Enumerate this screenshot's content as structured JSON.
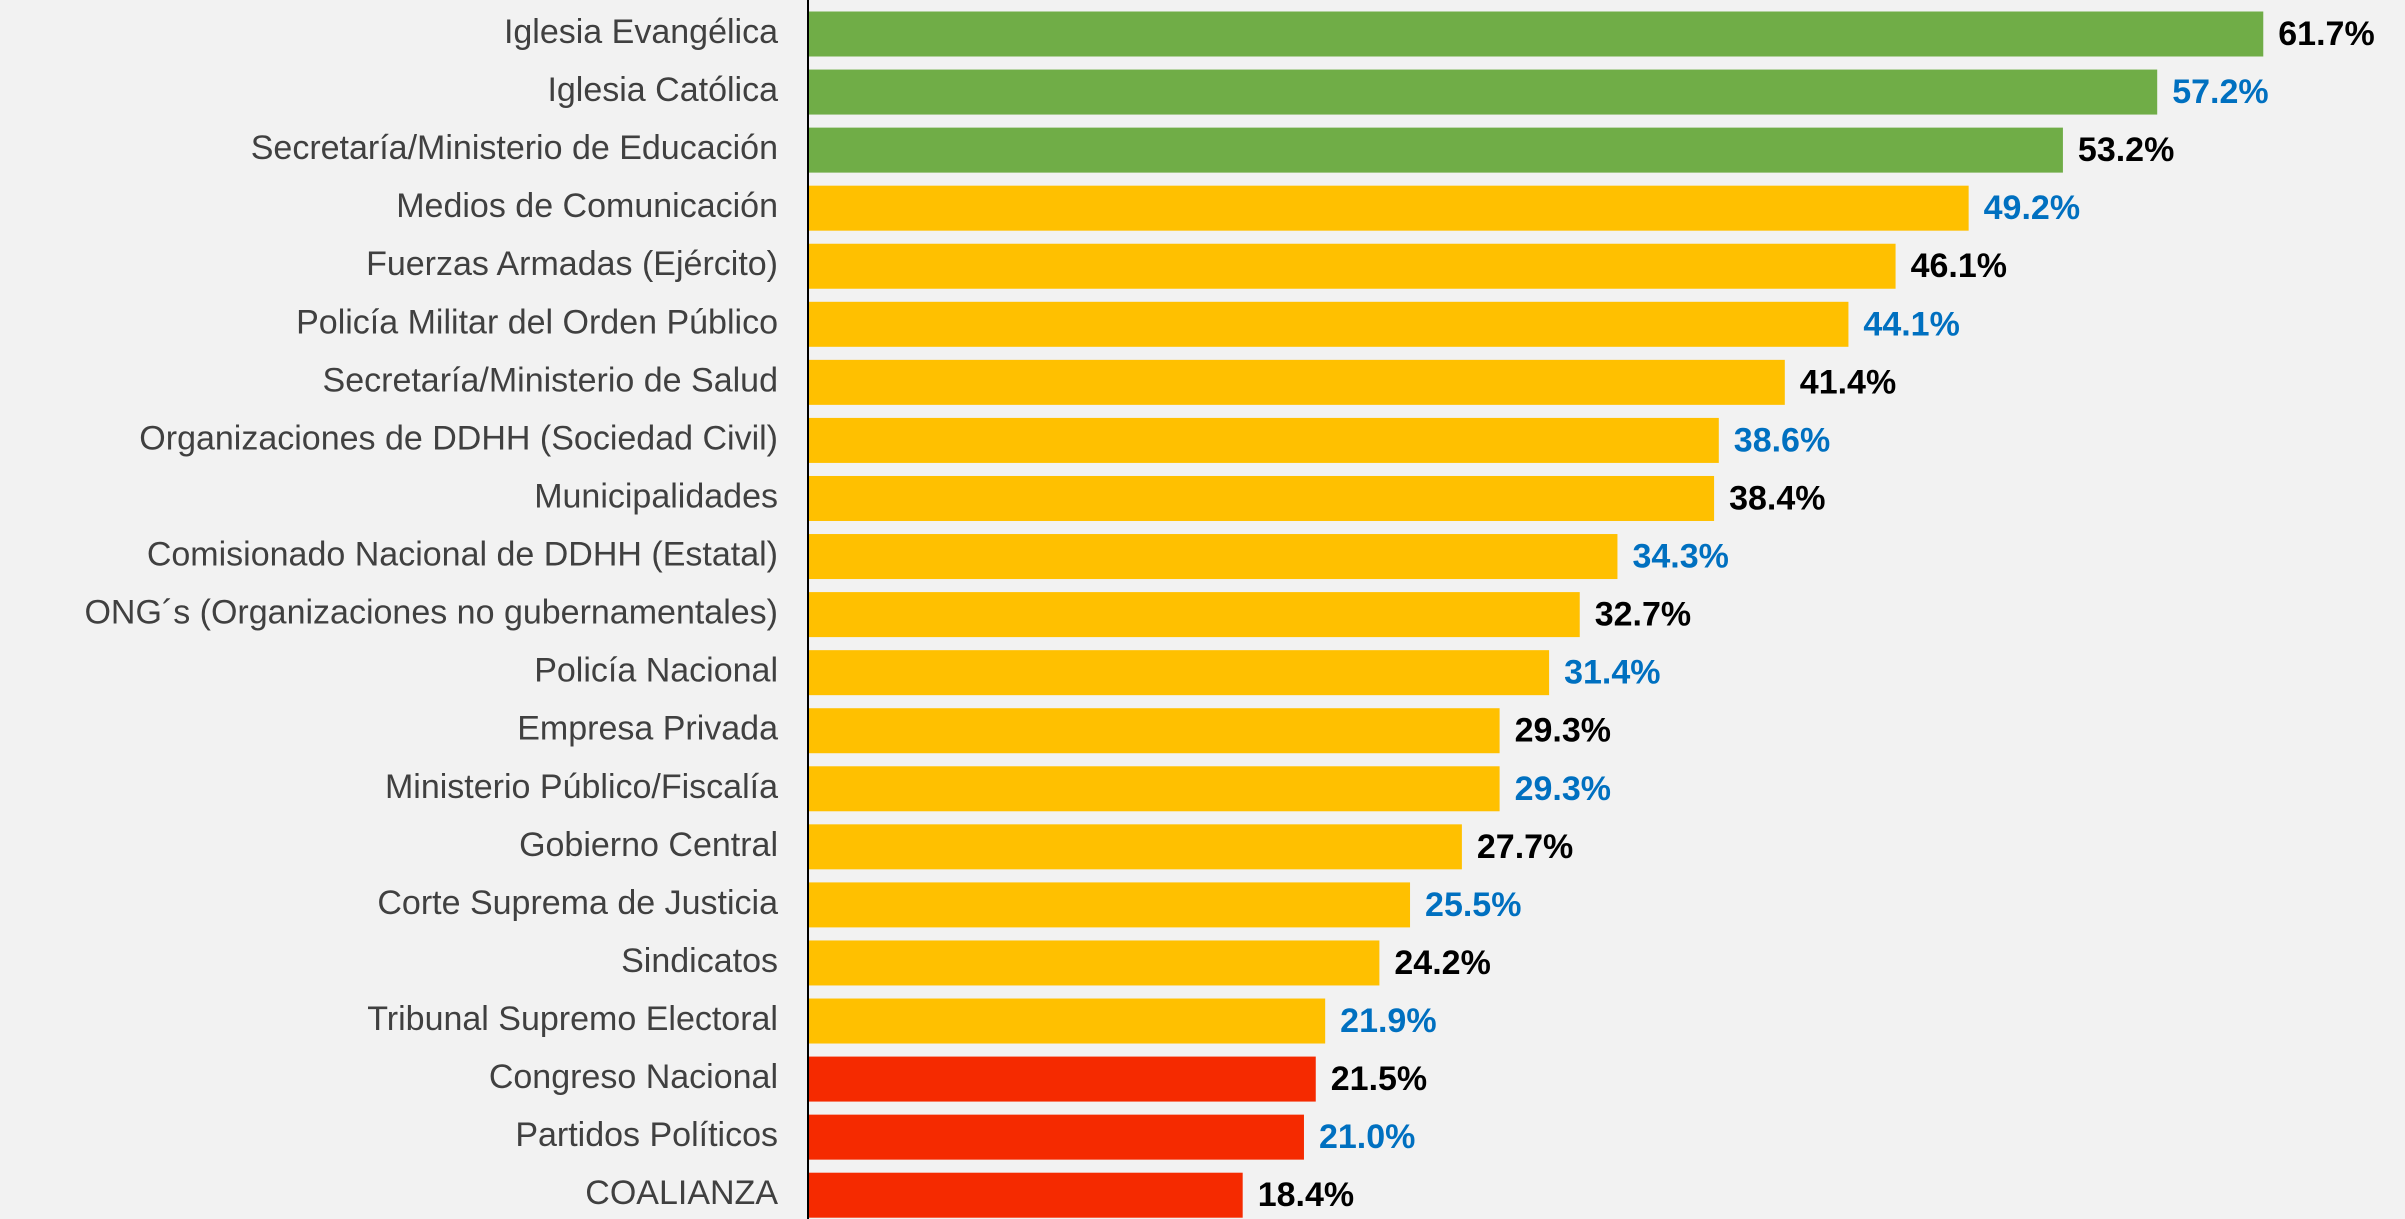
{
  "chart_data": {
    "type": "bar",
    "orientation": "horizontal",
    "categories": [
      "Iglesia Evangélica",
      "Iglesia Católica",
      "Secretaría/Ministerio de Educación",
      "Medios de Comunicación",
      "Fuerzas Armadas (Ejército)",
      "Policía Militar del Orden Público",
      "Secretaría/Ministerio de Salud",
      "Organizaciones de DDHH (Sociedad Civil)",
      "Municipalidades",
      "Comisionado Nacional de DDHH (Estatal)",
      "ONG´s (Organizaciones no gubernamentales)",
      "Policía Nacional",
      "Empresa Privada",
      "Ministerio Público/Fiscalía",
      "Gobierno Central",
      "Corte Suprema de Justicia",
      "Sindicatos",
      "Tribunal Supremo Electoral",
      "Congreso Nacional",
      "Partidos Políticos",
      "COALIANZA"
    ],
    "values": [
      61.7,
      57.2,
      53.2,
      49.2,
      46.1,
      44.1,
      41.4,
      38.6,
      38.4,
      34.3,
      32.7,
      31.4,
      29.3,
      29.3,
      27.7,
      25.5,
      24.2,
      21.9,
      21.5,
      21.0,
      18.4
    ],
    "value_labels": [
      "61.7%",
      "57.2%",
      "53.2%",
      "49.2%",
      "46.1%",
      "44.1%",
      "41.4%",
      "38.6%",
      "38.4%",
      "34.3%",
      "32.7%",
      "31.4%",
      "29.3%",
      "29.3%",
      "27.7%",
      "25.5%",
      "24.2%",
      "21.9%",
      "21.5%",
      "21.0%",
      "18.4%"
    ],
    "colors": [
      "#70ad47",
      "#70ad47",
      "#70ad47",
      "#ffc000",
      "#ffc000",
      "#ffc000",
      "#ffc000",
      "#ffc000",
      "#ffc000",
      "#ffc000",
      "#ffc000",
      "#ffc000",
      "#ffc000",
      "#ffc000",
      "#ffc000",
      "#ffc000",
      "#ffc000",
      "#ffc000",
      "#f52a00",
      "#f52a00",
      "#f52a00"
    ],
    "value_label_colors": [
      "#000000",
      "#0070c0",
      "#000000",
      "#0070c0",
      "#000000",
      "#0070c0",
      "#000000",
      "#0070c0",
      "#000000",
      "#0070c0",
      "#000000",
      "#0070c0",
      "#000000",
      "#0070c0",
      "#000000",
      "#0070c0",
      "#000000",
      "#0070c0",
      "#000000",
      "#0070c0",
      "#000000"
    ]
  }
}
